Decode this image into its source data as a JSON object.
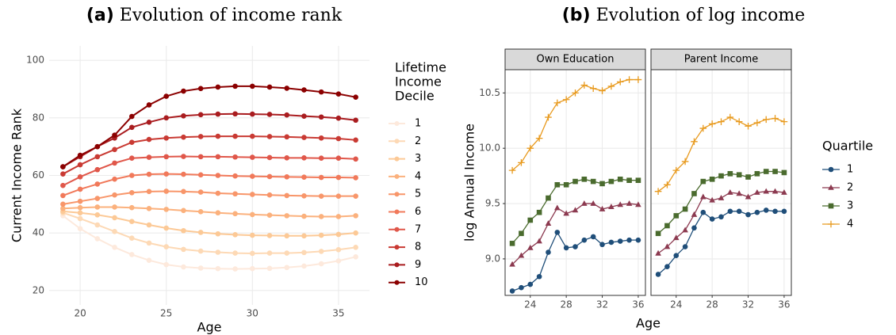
{
  "chart_data": [
    {
      "type": "line",
      "panel": "(a)",
      "title": "Evolution of income rank",
      "x": [
        19,
        20,
        21,
        22,
        23,
        24,
        25,
        26,
        27,
        28,
        29,
        30,
        31,
        32,
        33,
        34,
        35,
        36
      ],
      "series": [
        {
          "name": "1",
          "color": "#fde9dc",
          "values": [
            46,
            41.5,
            38,
            35,
            32.5,
            30.5,
            29,
            28.2,
            27.8,
            27.6,
            27.5,
            27.6,
            27.7,
            28,
            28.5,
            29.3,
            30.3,
            31.7
          ]
        },
        {
          "name": "2",
          "color": "#fdd9b5",
          "values": [
            47,
            45,
            42.8,
            40.5,
            38.2,
            36.5,
            35.2,
            34.3,
            33.7,
            33.3,
            33,
            32.9,
            33,
            33,
            33.2,
            33.6,
            34.2,
            35
          ]
        },
        {
          "name": "3",
          "color": "#fcc996",
          "values": [
            47.5,
            47,
            46.3,
            45.3,
            44,
            42.8,
            41.7,
            40.8,
            40.2,
            39.7,
            39.4,
            39.2,
            39.1,
            39,
            39,
            39.2,
            39.5,
            40
          ]
        },
        {
          "name": "4",
          "color": "#fbb17d",
          "values": [
            48.5,
            48.8,
            49,
            49,
            48.8,
            48.5,
            48.2,
            47.8,
            47.4,
            47,
            46.7,
            46.4,
            46.2,
            46,
            45.8,
            45.7,
            45.7,
            46
          ]
        },
        {
          "name": "5",
          "color": "#f8966a",
          "values": [
            50,
            51,
            52,
            53.2,
            54,
            54.4,
            54.5,
            54.4,
            54.2,
            53.8,
            53.6,
            53.4,
            53.2,
            53,
            52.9,
            52.8,
            52.8,
            52.8
          ]
        },
        {
          "name": "6",
          "color": "#f1795a",
          "values": [
            53,
            55.2,
            57,
            58.7,
            60,
            60.4,
            60.5,
            60.4,
            60.2,
            60,
            59.8,
            59.7,
            59.6,
            59.5,
            59.4,
            59.3,
            59.3,
            59.2
          ]
        },
        {
          "name": "7",
          "color": "#e0574a",
          "values": [
            56.5,
            59.5,
            62,
            64.3,
            66,
            66.3,
            66.5,
            66.6,
            66.5,
            66.5,
            66.4,
            66.3,
            66.2,
            66.1,
            66.1,
            66,
            66,
            65.7
          ]
        },
        {
          "name": "8",
          "color": "#c93a33",
          "values": [
            60.5,
            63.7,
            66.5,
            69,
            71.5,
            72.5,
            73,
            73.3,
            73.5,
            73.6,
            73.6,
            73.6,
            73.5,
            73.4,
            73.2,
            73,
            72.8,
            72.3
          ]
        },
        {
          "name": "9",
          "color": "#a91c1f",
          "values": [
            63,
            66.5,
            70,
            73,
            76.7,
            78.5,
            80,
            80.7,
            81.1,
            81.3,
            81.4,
            81.3,
            81.2,
            81,
            80.6,
            80.3,
            79.9,
            79.2
          ]
        },
        {
          "name": "10",
          "color": "#8b0000",
          "values": [
            63,
            67,
            70,
            74,
            80.5,
            84.5,
            87.5,
            89.3,
            90.2,
            90.7,
            91,
            91,
            90.7,
            90.3,
            89.7,
            89,
            88.3,
            87.2
          ]
        }
      ],
      "xlim": [
        18.2,
        36.8
      ],
      "ylim": [
        15,
        105
      ],
      "xticks": [
        20,
        25,
        30,
        35
      ],
      "yticks": [
        20,
        40,
        60,
        80,
        100
      ],
      "xlabel": "Age",
      "ylabel": "Current Income Rank",
      "legend_title": [
        "Lifetime",
        "Income",
        "Decile"
      ],
      "legend": "right",
      "grid": true
    },
    {
      "type": "facet_line",
      "panel": "(b)",
      "title": "Evolution of log income",
      "x": [
        22,
        23,
        24,
        25,
        26,
        27,
        28,
        29,
        30,
        31,
        32,
        33,
        34,
        35,
        36
      ],
      "series": [
        {
          "name": "1",
          "color": "#1f4e79",
          "marker": "circle"
        },
        {
          "name": "2",
          "color": "#8c3a50",
          "marker": "triangle"
        },
        {
          "name": "3",
          "color": "#4a6b2e",
          "marker": "square"
        },
        {
          "name": "4",
          "color": "#e89a1e",
          "marker": "plus"
        }
      ],
      "facets": [
        {
          "title": "Own Education",
          "values": [
            [
              8.71,
              8.74,
              8.77,
              8.84,
              9.06,
              9.24,
              9.1,
              9.11,
              9.17,
              9.2,
              9.13,
              9.15,
              9.16,
              9.17,
              9.17
            ],
            [
              8.95,
              9.03,
              9.1,
              9.16,
              9.32,
              9.46,
              9.41,
              9.44,
              9.5,
              9.5,
              9.45,
              9.47,
              9.49,
              9.5,
              9.49
            ],
            [
              9.14,
              9.23,
              9.35,
              9.42,
              9.55,
              9.67,
              9.67,
              9.7,
              9.72,
              9.7,
              9.68,
              9.7,
              9.72,
              9.71,
              9.71
            ],
            [
              9.8,
              9.87,
              10.0,
              10.09,
              10.28,
              10.41,
              10.44,
              10.5,
              10.57,
              10.54,
              10.52,
              10.56,
              10.6,
              10.62,
              10.62
            ]
          ]
        },
        {
          "title": "Parent Income",
          "values": [
            [
              8.86,
              8.93,
              9.03,
              9.11,
              9.28,
              9.42,
              9.36,
              9.38,
              9.43,
              9.43,
              9.4,
              9.42,
              9.44,
              9.43,
              9.43
            ],
            [
              9.05,
              9.11,
              9.19,
              9.26,
              9.4,
              9.56,
              9.53,
              9.55,
              9.6,
              9.59,
              9.56,
              9.6,
              9.61,
              9.61,
              9.6
            ],
            [
              9.23,
              9.3,
              9.39,
              9.45,
              9.59,
              9.7,
              9.72,
              9.75,
              9.77,
              9.76,
              9.74,
              9.77,
              9.79,
              9.79,
              9.78
            ],
            [
              9.61,
              9.67,
              9.8,
              9.88,
              10.06,
              10.18,
              10.22,
              10.24,
              10.28,
              10.24,
              10.2,
              10.23,
              10.26,
              10.27,
              10.24
            ]
          ]
        }
      ],
      "xlim": [
        21.2,
        36.8
      ],
      "ylim": [
        8.67,
        10.71
      ],
      "xticks": [
        24,
        28,
        32,
        36
      ],
      "yticks": [
        {
          "value": 9,
          "label": "9.0"
        },
        9.5,
        {
          "value": 10,
          "label": "10.0"
        },
        10.5
      ],
      "xlabel": "Age",
      "ylabel": "log Annual Income",
      "legend_title": "Quartile",
      "legend": "right",
      "grid": true
    }
  ]
}
